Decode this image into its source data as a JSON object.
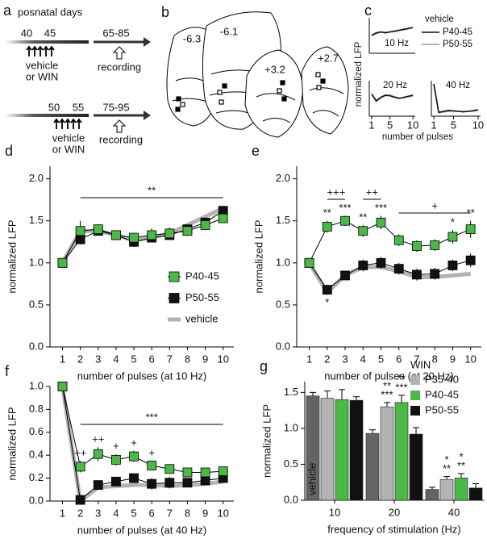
{
  "panels": {
    "a": {
      "letter": "a",
      "title": "posnatal days",
      "rows": [
        {
          "start": "40",
          "end": "45",
          "treatment": [
            "vehicle",
            "or WIN"
          ],
          "recording_age": "65-85",
          "recording": "recording"
        },
        {
          "start": "50",
          "end": "55",
          "treatment": [
            "vehicle",
            "or WIN"
          ],
          "recording_age": "75-95",
          "recording": "recording"
        }
      ]
    },
    "b": {
      "letter": "b",
      "sections": [
        "-6.3",
        "-6.1",
        "+3.2",
        "+2.7"
      ]
    },
    "c": {
      "letter": "c",
      "ylabel": "normalized LFP",
      "xlabel": "number of pulses"
    }
  },
  "chart_data": [
    {
      "type": "line",
      "title": "10 Hz",
      "x": [
        1,
        2,
        3,
        4,
        5,
        6,
        7,
        8,
        9,
        10
      ],
      "xlim": [
        0.5,
        10.5
      ],
      "ylim": [
        0,
        2
      ],
      "legend": "right",
      "legend_title": "vehicle",
      "series": [
        {
          "name": "P40-45",
          "color": "#111111",
          "marker": "none",
          "line_width": 1.6,
          "values": [
            1.0,
            1.15,
            1.2,
            1.15,
            1.2,
            1.25,
            1.3,
            1.35,
            1.4,
            1.45
          ]
        },
        {
          "name": "P50-55",
          "color": "#9a9a9a",
          "marker": "none",
          "line_width": 1.6,
          "values": [
            1.0,
            1.1,
            1.2,
            1.18,
            1.2,
            1.22,
            1.28,
            1.32,
            1.38,
            1.45
          ]
        }
      ]
    },
    {
      "type": "line",
      "title": "20 Hz",
      "x": [
        1,
        2,
        3,
        4,
        5,
        6,
        7,
        8,
        9,
        10
      ],
      "xlim": [
        0.5,
        10.5
      ],
      "ylim": [
        0,
        1.6
      ],
      "xticks": [
        1,
        5,
        10
      ],
      "series": [
        {
          "color": "#111111",
          "marker": "none",
          "line_width": 1.6,
          "values": [
            1.0,
            0.7,
            0.85,
            0.95,
            0.92,
            0.85,
            0.8,
            0.85,
            0.9,
            0.95
          ]
        },
        {
          "color": "#9a9a9a",
          "marker": "none",
          "line_width": 1.6,
          "values": [
            1.0,
            0.65,
            0.82,
            0.92,
            0.95,
            0.88,
            0.82,
            0.83,
            0.88,
            0.9
          ]
        }
      ]
    },
    {
      "type": "line",
      "title": "40 Hz",
      "x": [
        1,
        2,
        3,
        4,
        5,
        6,
        7,
        8,
        9,
        10
      ],
      "xlim": [
        0.5,
        10.5
      ],
      "ylim": [
        0,
        1.1
      ],
      "xticks": [
        1,
        5,
        10
      ],
      "series": [
        {
          "color": "#111111",
          "marker": "none",
          "line_width": 1.6,
          "values": [
            1.0,
            0.12,
            0.15,
            0.18,
            0.16,
            0.15,
            0.14,
            0.15,
            0.17,
            0.2
          ]
        },
        {
          "color": "#9a9a9a",
          "marker": "none",
          "line_width": 1.6,
          "values": [
            1.0,
            0.1,
            0.13,
            0.15,
            0.17,
            0.15,
            0.13,
            0.15,
            0.16,
            0.18
          ]
        }
      ]
    },
    {
      "type": "line",
      "panel": "d",
      "xlabel": "number of pulses (at 10 Hz)",
      "ylabel": "normalized LFP",
      "x": [
        1,
        2,
        3,
        4,
        5,
        6,
        7,
        8,
        9,
        10
      ],
      "xlim": [
        0.3,
        10.6
      ],
      "xticks": [
        1,
        2,
        3,
        4,
        5,
        6,
        7,
        8,
        9,
        10
      ],
      "ylim": [
        0,
        2.15
      ],
      "yticks": [
        {
          "value": 0,
          "label": "0.0"
        },
        {
          "value": 0.5,
          "label": "0.5"
        },
        {
          "value": 1,
          "label": "1.0"
        },
        {
          "value": 1.5,
          "label": "1.5"
        },
        {
          "value": 2,
          "label": "2.0"
        }
      ],
      "legend": "lower right",
      "brackets": [
        {
          "text": "**",
          "span": [
            2,
            10
          ]
        }
      ],
      "series": [
        {
          "name": "P40-45",
          "color": "#4cb848",
          "marker": "square",
          "line_color": "#000000",
          "line_width": 1,
          "values": [
            1.0,
            1.38,
            1.4,
            1.33,
            1.3,
            1.33,
            1.35,
            1.38,
            1.45,
            1.53
          ],
          "errors": [
            null,
            0.12,
            0.06,
            0.05,
            0.05,
            0.08,
            0.07,
            0.06,
            0.06,
            0.05
          ]
        },
        {
          "name": "P50-55",
          "color": "#111111",
          "marker": "square",
          "line_color": "#000000",
          "line_width": 1,
          "values": [
            1.0,
            1.28,
            1.38,
            1.33,
            1.25,
            1.3,
            1.33,
            1.4,
            1.48,
            1.62
          ],
          "errors": [
            null,
            0.06,
            0.05,
            0.05,
            0.06,
            0.05,
            0.05,
            0.05,
            0.06,
            0.05
          ]
        },
        {
          "name": "vehicle",
          "color": "#b3b3b3",
          "marker": "none",
          "line_width": 5,
          "values": [
            1.0,
            1.38,
            1.38,
            1.33,
            1.27,
            1.3,
            1.35,
            1.45,
            1.55,
            1.65
          ]
        }
      ]
    },
    {
      "type": "line",
      "panel": "e",
      "xlabel": "number of pulses (at 20 Hz)",
      "ylabel": "normalized LFP",
      "x": [
        1,
        2,
        3,
        4,
        5,
        6,
        7,
        8,
        9,
        10
      ],
      "xlim": [
        0.3,
        10.6
      ],
      "xticks": [
        1,
        2,
        3,
        4,
        5,
        6,
        7,
        8,
        9,
        10
      ],
      "ylim": [
        0,
        2.15
      ],
      "yticks": [
        {
          "value": 0,
          "label": "0.0"
        },
        {
          "value": 0.5,
          "label": "0.5"
        },
        {
          "value": 1,
          "label": "1.0"
        },
        {
          "value": 1.5,
          "label": "1.5"
        },
        {
          "value": 2,
          "label": "2.0"
        }
      ],
      "brackets": [
        {
          "text": "+++",
          "span": [
            2,
            3
          ]
        },
        {
          "text": "++",
          "span": [
            4,
            5
          ]
        },
        {
          "text": "+",
          "span": [
            6,
            10
          ]
        }
      ],
      "series": [
        {
          "color": "#4cb848",
          "marker": "square",
          "line_color": "#000000",
          "line_width": 1,
          "values": [
            1.0,
            1.43,
            1.5,
            1.38,
            1.48,
            1.27,
            1.2,
            1.21,
            1.31,
            1.4
          ],
          "errors": [
            null,
            0.07,
            0.06,
            0.07,
            0.08,
            0.07,
            0.07,
            0.07,
            0.08,
            0.1
          ],
          "point_labels": [
            null,
            "**",
            "***",
            "**",
            "***",
            null,
            null,
            null,
            "*",
            "**"
          ],
          "label_side": "above"
        },
        {
          "color": "#111111",
          "marker": "square",
          "line_color": "#000000",
          "line_width": 1,
          "values": [
            1.0,
            0.68,
            0.85,
            0.97,
            1.0,
            0.93,
            0.86,
            0.87,
            0.97,
            1.03
          ],
          "errors": [
            null,
            0.06,
            0.05,
            0.07,
            0.07,
            0.07,
            0.07,
            0.07,
            0.07,
            0.08
          ],
          "point_labels": [
            null,
            "*",
            null,
            null,
            null,
            null,
            null,
            null,
            null,
            null
          ],
          "label_side": "below"
        },
        {
          "color": "#b3b3b3",
          "marker": "none",
          "line_width": 5,
          "values": [
            1.0,
            0.65,
            0.85,
            0.95,
            0.95,
            0.9,
            0.83,
            0.83,
            0.85,
            0.87
          ]
        }
      ]
    },
    {
      "type": "line",
      "panel": "f",
      "xlabel": "number of pulses (at 40 Hz)",
      "ylabel": "normalized LFP",
      "x": [
        1,
        2,
        3,
        4,
        5,
        6,
        7,
        8,
        9,
        10
      ],
      "xlim": [
        0.3,
        10.6
      ],
      "xticks": [
        1,
        2,
        3,
        4,
        5,
        6,
        7,
        8,
        9,
        10
      ],
      "ylim": [
        0,
        1.0
      ],
      "yticks": [
        {
          "value": 0,
          "label": "0.0"
        },
        {
          "value": 0.2,
          "label": "0.2"
        },
        {
          "value": 0.4,
          "label": "0.4"
        },
        {
          "value": 0.6,
          "label": "0.6"
        },
        {
          "value": 0.8,
          "label": "0.8"
        },
        {
          "value": 1,
          "label": "1.0"
        }
      ],
      "brackets": [
        {
          "text": "***",
          "span": [
            2,
            10
          ]
        }
      ],
      "series": [
        {
          "color": "#4cb848",
          "marker": "square",
          "line_color": "#000000",
          "line_width": 1,
          "values": [
            1.0,
            0.3,
            0.41,
            0.36,
            0.39,
            0.31,
            0.28,
            0.25,
            0.25,
            0.26
          ],
          "errors": [
            null,
            0.05,
            0.06,
            0.05,
            0.05,
            0.04,
            0.04,
            0.04,
            0.04,
            0.04
          ],
          "point_labels": [
            null,
            "++",
            "++",
            "+",
            "+",
            "+",
            null,
            null,
            null,
            null
          ],
          "label_side": "above"
        },
        {
          "color": "#111111",
          "marker": "square",
          "line_color": "#000000",
          "line_width": 1,
          "values": [
            1.0,
            0.01,
            0.14,
            0.17,
            0.2,
            0.15,
            0.16,
            0.16,
            0.18,
            0.2
          ],
          "errors": [
            null,
            0.02,
            0.04,
            0.04,
            0.04,
            0.05,
            0.05,
            0.04,
            0.04,
            0.04
          ]
        },
        {
          "color": "#b3b3b3",
          "marker": "none",
          "line_width": 5,
          "values": [
            1.0,
            0.0,
            0.12,
            0.13,
            0.14,
            0.14,
            0.13,
            0.14,
            0.15,
            0.17
          ]
        }
      ]
    },
    {
      "type": "bar",
      "panel": "g",
      "xlabel": "frequency of stimulation (Hz)",
      "ylabel": "normalized LFP",
      "categories": [
        "10",
        "20",
        "40"
      ],
      "ylim": [
        0,
        1.65
      ],
      "yticks": [
        {
          "value": 0,
          "label": "0.0"
        },
        {
          "value": 0.5,
          "label": "0.5"
        },
        {
          "value": 1,
          "label": "1.0"
        },
        {
          "value": 1.5,
          "label": "1.5"
        }
      ],
      "legend": "upper right",
      "legend_title": "WIN",
      "series": [
        {
          "name": "vehicle",
          "color": "#646464",
          "label_in_bar": true,
          "values": [
            1.45,
            0.93,
            0.15
          ],
          "errors": [
            0.05,
            0.05,
            0.03
          ]
        },
        {
          "name": "P35-40",
          "color": "#b3b3b3",
          "values": [
            1.42,
            1.3,
            0.29
          ],
          "errors": [
            0.1,
            0.06,
            0.04
          ],
          "point_labels": [
            null,
            [
              "**",
              "***"
            ],
            [
              "*",
              "**"
            ]
          ]
        },
        {
          "name": "P40-45",
          "color": "#4cb848",
          "values": [
            1.4,
            1.36,
            0.31
          ],
          "errors": [
            0.14,
            0.1,
            0.06
          ],
          "point_labels": [
            null,
            [
              "**",
              "***"
            ],
            [
              "*",
              "**"
            ]
          ]
        },
        {
          "name": "P50-55",
          "color": "#111111",
          "values": [
            1.39,
            0.92,
            0.17
          ],
          "errors": [
            0.05,
            0.09,
            0.06
          ]
        }
      ]
    }
  ]
}
